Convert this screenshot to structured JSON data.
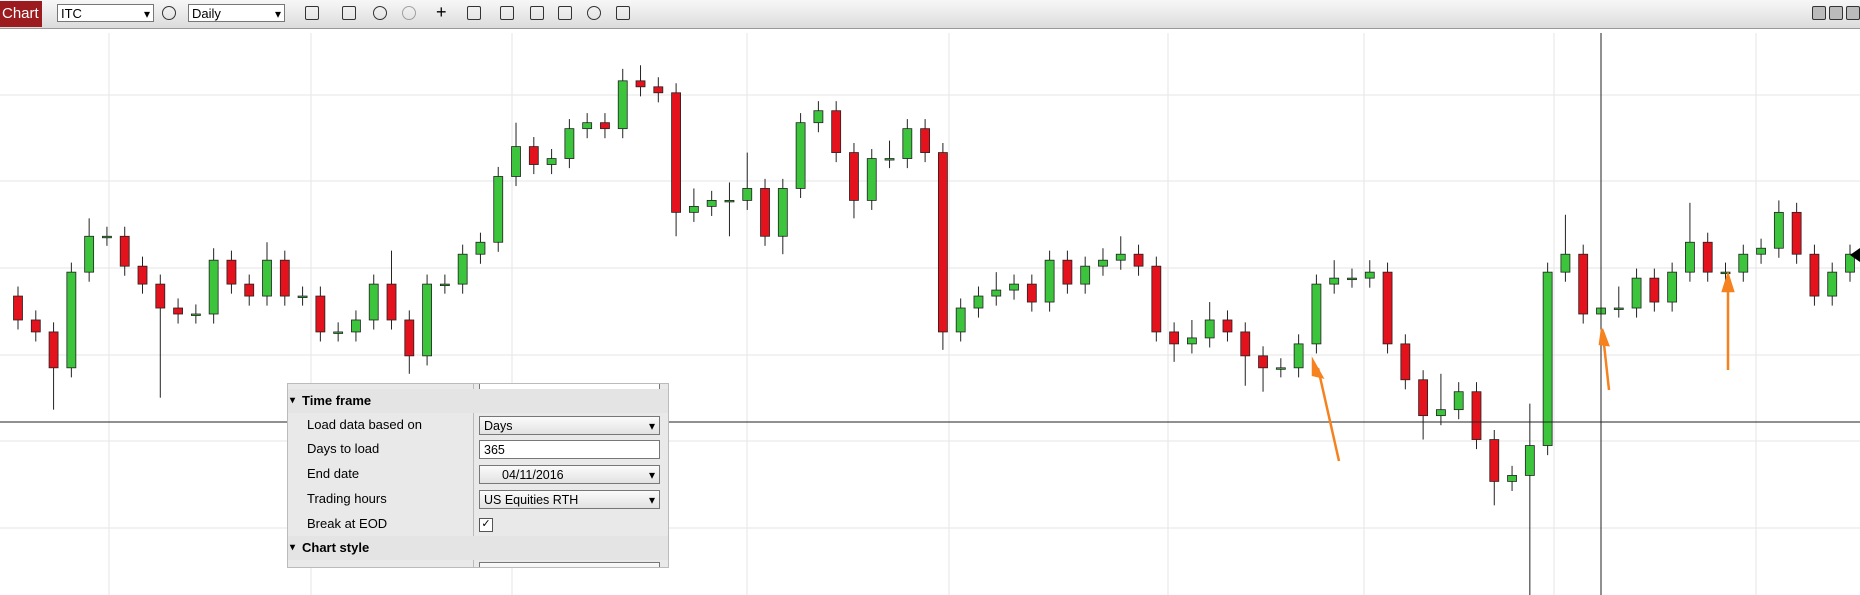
{
  "toolbar": {
    "tab": "Chart",
    "instrument": "ITC",
    "interval": "Daily"
  },
  "chart_data": {
    "type": "candlestick",
    "ylim": [
      0,
      470
    ],
    "up_color": "#3cc43c",
    "down_color": "#e3121c",
    "open": [
      250,
      230,
      220,
      190,
      270,
      300,
      300,
      275,
      260,
      240,
      235,
      235,
      280,
      260,
      250,
      280,
      250,
      250,
      220,
      220,
      230,
      260,
      230,
      200,
      260,
      260,
      285,
      295,
      350,
      375,
      360,
      365,
      390,
      395,
      390,
      430,
      425,
      420,
      320,
      325,
      330,
      330,
      340,
      300,
      340,
      395,
      405,
      370,
      330,
      365,
      365,
      390,
      370,
      220,
      240,
      250,
      255,
      260,
      245,
      280,
      260,
      275,
      280,
      285,
      275,
      220,
      210,
      215,
      230,
      220,
      200,
      190,
      190,
      210,
      260,
      265,
      265,
      270,
      210,
      180,
      150,
      155,
      170,
      130,
      95,
      100,
      125,
      270,
      285,
      235,
      240,
      240,
      265,
      245,
      270,
      295,
      270,
      270,
      285,
      290,
      320,
      285,
      250,
      270
    ],
    "high": [
      258,
      238,
      228,
      278,
      315,
      308,
      308,
      283,
      268,
      248,
      243,
      290,
      288,
      268,
      295,
      288,
      258,
      258,
      228,
      238,
      268,
      288,
      238,
      268,
      268,
      293,
      303,
      358,
      395,
      383,
      373,
      398,
      403,
      403,
      440,
      443,
      433,
      428,
      340,
      338,
      345,
      370,
      348,
      348,
      403,
      413,
      413,
      378,
      373,
      380,
      398,
      398,
      378,
      248,
      258,
      270,
      268,
      268,
      288,
      288,
      283,
      290,
      300,
      293,
      283,
      228,
      230,
      245,
      238,
      228,
      208,
      198,
      218,
      268,
      280,
      273,
      280,
      278,
      218,
      188,
      185,
      178,
      178,
      138,
      108,
      160,
      278,
      318,
      293,
      248,
      258,
      273,
      273,
      278,
      328,
      303,
      278,
      293,
      298,
      330,
      328,
      293,
      278,
      293
    ],
    "low": [
      222,
      212,
      155,
      182,
      262,
      292,
      267,
      252,
      165,
      227,
      227,
      227,
      252,
      242,
      242,
      242,
      242,
      212,
      212,
      212,
      222,
      222,
      185,
      192,
      252,
      252,
      277,
      287,
      342,
      352,
      352,
      357,
      382,
      382,
      382,
      417,
      412,
      300,
      312,
      317,
      300,
      322,
      292,
      285,
      332,
      387,
      362,
      315,
      322,
      357,
      357,
      362,
      205,
      212,
      232,
      242,
      247,
      237,
      237,
      252,
      252,
      267,
      272,
      267,
      212,
      195,
      202,
      207,
      212,
      175,
      170,
      182,
      182,
      202,
      252,
      257,
      257,
      202,
      172,
      130,
      142,
      147,
      122,
      75,
      87,
      0,
      117,
      262,
      227,
      212,
      232,
      232,
      237,
      237,
      262,
      262,
      262,
      262,
      277,
      282,
      277,
      242,
      242,
      262
    ],
    "close": [
      230,
      220,
      190,
      270,
      300,
      300,
      275,
      260,
      240,
      235,
      235,
      280,
      260,
      250,
      280,
      250,
      250,
      220,
      220,
      230,
      260,
      230,
      200,
      260,
      260,
      285,
      295,
      350,
      375,
      360,
      365,
      390,
      395,
      390,
      430,
      425,
      420,
      320,
      325,
      330,
      330,
      340,
      300,
      340,
      395,
      405,
      370,
      330,
      365,
      365,
      390,
      370,
      220,
      240,
      250,
      255,
      260,
      245,
      280,
      260,
      275,
      280,
      285,
      275,
      220,
      210,
      215,
      230,
      220,
      200,
      190,
      190,
      210,
      260,
      265,
      265,
      270,
      210,
      180,
      150,
      155,
      170,
      130,
      95,
      100,
      125,
      270,
      285,
      235,
      240,
      240,
      265,
      245,
      270,
      295,
      270,
      270,
      285,
      290,
      320,
      285,
      250,
      270,
      285
    ]
  },
  "panel": {
    "sections": [
      "Time frame",
      "Chart style"
    ],
    "rows": [
      [
        "Load data based on",
        "Days"
      ],
      [
        "Days to load",
        "365"
      ],
      [
        "End date",
        "04/11/2016"
      ],
      [
        "Trading hours",
        "US Equities RTH"
      ],
      [
        "Break at EOD"
      ]
    ],
    "break_at_eod": true
  }
}
